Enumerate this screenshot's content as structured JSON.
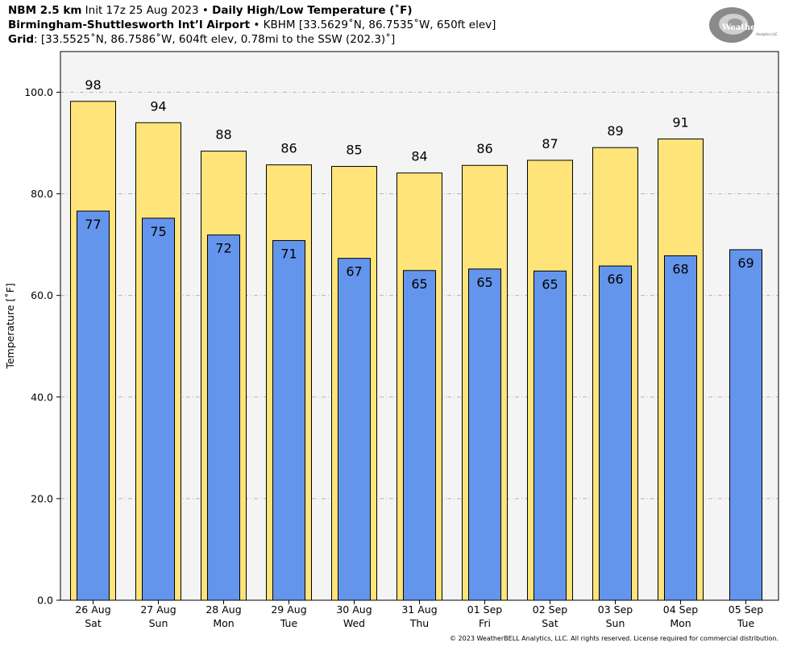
{
  "header": {
    "line1_bold_a": "NBM 2.5 km",
    "line1_normal": " Init 17z 25 Aug 2023 • ",
    "line1_bold_b": "Daily High/Low Temperature (˚F)",
    "line2_bold": "Birmingham-Shuttlesworth Int’l Airport",
    "line2_normal": " • KBHM [33.5629˚N, 86.7535˚W, 650ft elev]",
    "line3_bold": "Grid",
    "line3_normal": ": [33.5525˚N, 86.7586˚W, 604ft elev, 0.78mi to the SSW (202.3)˚]"
  },
  "logo": {
    "text": "WeatherBELL",
    "subtext": "Analytics LLC"
  },
  "copyright": "© 2023 WeatherBELL Analytics, LLC. All rights reserved. License required for commercial distribution.",
  "colors": {
    "high_bar": "#ffe47a",
    "low_bar": "#6495ed",
    "plot_bg": "#f4f4f4",
    "grid": "#b5b5b5"
  },
  "chart_data": {
    "type": "bar",
    "title": "Daily High/Low Temperature (˚F)",
    "ylabel": "Temperature [˚F]",
    "xlabel": "",
    "ylim": [
      0,
      108
    ],
    "yticks": [
      0,
      20,
      40,
      60,
      80,
      100
    ],
    "ytick_labels": [
      "0.0",
      "20.0",
      "40.0",
      "60.0",
      "80.0",
      "100.0"
    ],
    "grid": true,
    "categories": [
      {
        "date": "26 Aug",
        "day": "Sat"
      },
      {
        "date": "27 Aug",
        "day": "Sun"
      },
      {
        "date": "28 Aug",
        "day": "Mon"
      },
      {
        "date": "29 Aug",
        "day": "Tue"
      },
      {
        "date": "30 Aug",
        "day": "Wed"
      },
      {
        "date": "31 Aug",
        "day": "Thu"
      },
      {
        "date": "01 Sep",
        "day": "Fri"
      },
      {
        "date": "02 Sep",
        "day": "Sat"
      },
      {
        "date": "03 Sep",
        "day": "Sun"
      },
      {
        "date": "04 Sep",
        "day": "Mon"
      },
      {
        "date": "05 Sep",
        "day": "Tue"
      }
    ],
    "series": [
      {
        "key": "high",
        "values": [
          98.2,
          94.0,
          88.4,
          85.7,
          85.4,
          84.1,
          85.6,
          86.6,
          89.1,
          90.8,
          null
        ],
        "labels": [
          "98",
          "94",
          "88",
          "86",
          "85",
          "84",
          "86",
          "87",
          "89",
          "91",
          ""
        ]
      },
      {
        "key": "low",
        "values": [
          76.6,
          75.2,
          71.9,
          70.8,
          67.3,
          64.9,
          65.2,
          64.8,
          65.8,
          67.8,
          69.0
        ],
        "labels": [
          "77",
          "75",
          "72",
          "71",
          "67",
          "65",
          "65",
          "65",
          "66",
          "68",
          "69"
        ]
      }
    ]
  }
}
